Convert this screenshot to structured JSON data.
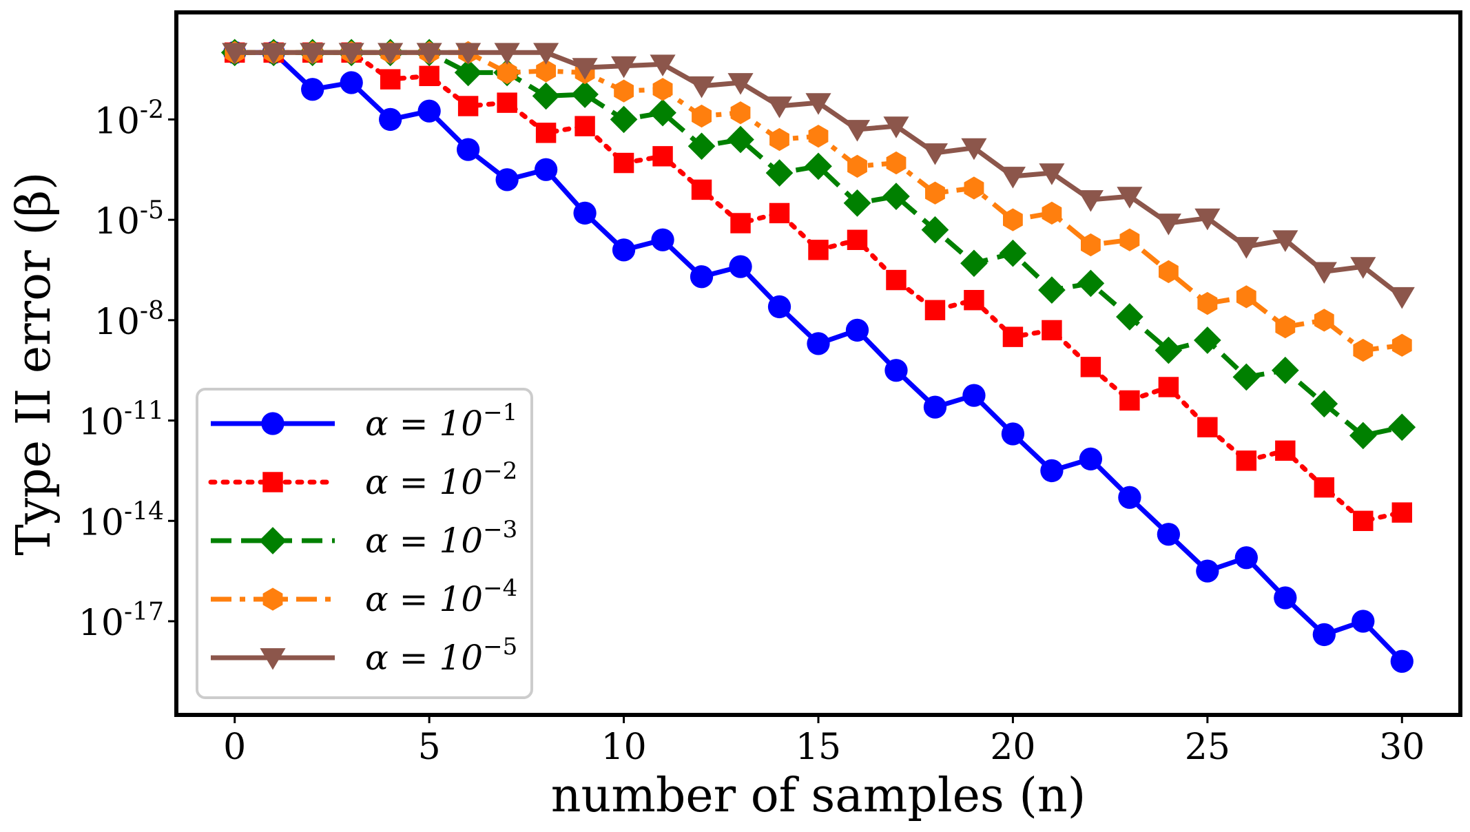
{
  "chart_data": {
    "type": "line",
    "xlabel": "number of samples (n)",
    "ylabel": "Type II error (β)",
    "xlim": [
      -1.5,
      31.5
    ],
    "ylim_log10": [
      -19.8,
      1.2
    ],
    "yscale": "log",
    "grid": false,
    "legend_position": "lower-left",
    "x_ticks": [
      0,
      5,
      10,
      15,
      20,
      25,
      30
    ],
    "x_tick_labels": [
      "0",
      "5",
      "10",
      "15",
      "20",
      "25",
      "30"
    ],
    "y_ticks_log10": [
      -2,
      -5,
      -8,
      -11,
      -14,
      -17
    ],
    "y_tick_labels": [
      {
        "base": "10",
        "exp": "-2"
      },
      {
        "base": "10",
        "exp": "-5"
      },
      {
        "base": "10",
        "exp": "-8"
      },
      {
        "base": "10",
        "exp": "-11"
      },
      {
        "base": "10",
        "exp": "-14"
      },
      {
        "base": "10",
        "exp": "-17"
      }
    ],
    "x": [
      0,
      1,
      2,
      3,
      4,
      5,
      6,
      7,
      8,
      9,
      10,
      11,
      12,
      13,
      14,
      15,
      16,
      17,
      18,
      19,
      20,
      21,
      22,
      23,
      24,
      25,
      26,
      27,
      28,
      29,
      30
    ],
    "series": [
      {
        "name": "α = 10^-1",
        "label_main": "α = 10",
        "label_exp": "−1",
        "color": "#0000ff",
        "linestyle": "solid",
        "marker": "circle",
        "log10_values": [
          0,
          0,
          -1.1,
          -0.9,
          -2.0,
          -1.75,
          -2.9,
          -3.8,
          -3.5,
          -4.8,
          -5.9,
          -5.6,
          -6.7,
          -6.4,
          -7.6,
          -8.7,
          -8.3,
          -9.5,
          -10.6,
          -10.25,
          -11.4,
          -12.5,
          -12.15,
          -13.3,
          -14.4,
          -15.5,
          -15.1,
          -16.3,
          -17.4,
          -17.0,
          -18.2
        ]
      },
      {
        "name": "α = 10^-2",
        "label_main": "α = 10",
        "label_exp": "−2",
        "color": "#ff0000",
        "linestyle": "dotted",
        "marker": "square",
        "log10_values": [
          0,
          0,
          0,
          0,
          -0.8,
          -0.7,
          -1.6,
          -1.5,
          -2.4,
          -2.2,
          -3.3,
          -3.1,
          -4.1,
          -5.1,
          -4.8,
          -5.9,
          -5.6,
          -6.8,
          -7.7,
          -7.4,
          -8.5,
          -8.3,
          -9.4,
          -10.4,
          -10.0,
          -11.2,
          -12.2,
          -11.9,
          -13.0,
          -14.0,
          -13.75
        ]
      },
      {
        "name": "α = 10^-3",
        "label_main": "α = 10",
        "label_exp": "−3",
        "color": "#008000",
        "linestyle": "dashed",
        "marker": "diamond",
        "log10_values": [
          0,
          0,
          0,
          0,
          0,
          0,
          -0.6,
          -0.6,
          -1.3,
          -1.25,
          -2.0,
          -1.8,
          -2.8,
          -2.6,
          -3.6,
          -3.4,
          -4.5,
          -4.3,
          -5.3,
          -6.3,
          -6.0,
          -7.1,
          -6.9,
          -7.9,
          -8.9,
          -8.6,
          -9.7,
          -9.5,
          -10.5,
          -11.45,
          -11.2
        ]
      },
      {
        "name": "α = 10^-4",
        "label_main": "α = 10",
        "label_exp": "−4",
        "color": "#ff7f0e",
        "linestyle": "dashdot",
        "marker": "hexagon",
        "log10_values": [
          0,
          0,
          0,
          0,
          0,
          0,
          0,
          -0.6,
          -0.55,
          -0.6,
          -1.15,
          -1.1,
          -1.9,
          -1.8,
          -2.6,
          -2.5,
          -3.4,
          -3.3,
          -4.2,
          -4.05,
          -5.0,
          -4.8,
          -5.75,
          -5.6,
          -6.55,
          -7.5,
          -7.3,
          -8.2,
          -8.0,
          -8.9,
          -8.75
        ]
      },
      {
        "name": "α = 10^-5",
        "label_main": "α = 10",
        "label_exp": "−5",
        "color": "#8c564b",
        "linestyle": "solid",
        "marker": "triangle-down",
        "log10_values": [
          0,
          0,
          0,
          0,
          0,
          0,
          0,
          0,
          0,
          -0.45,
          -0.4,
          -0.35,
          -1.0,
          -0.9,
          -1.6,
          -1.5,
          -2.3,
          -2.2,
          -3.0,
          -2.85,
          -3.7,
          -3.6,
          -4.4,
          -4.3,
          -5.1,
          -4.95,
          -5.8,
          -5.6,
          -6.55,
          -6.4,
          -7.3
        ]
      }
    ]
  }
}
